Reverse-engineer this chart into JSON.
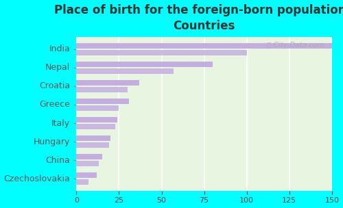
{
  "title": "Place of birth for the foreign-born population -\nCountries",
  "categories": [
    "India",
    "Nepal",
    "Croatia",
    "Greece",
    "Italy",
    "Hungary",
    "China",
    "Czechoslovakia"
  ],
  "bar1_values": [
    150,
    80,
    37,
    31,
    24,
    20,
    15,
    12
  ],
  "bar2_values": [
    100,
    57,
    30,
    25,
    23,
    19,
    13,
    7
  ],
  "bar_color": "#c4aee0",
  "background_color": "#00ffff",
  "plot_bg_color": "#e8f5e0",
  "xlim": [
    0,
    150
  ],
  "xticks": [
    0,
    25,
    50,
    75,
    100,
    125,
    150
  ],
  "title_fontsize": 12,
  "tick_fontsize": 8,
  "label_fontsize": 9,
  "title_color": "#333333",
  "label_color": "#555555"
}
